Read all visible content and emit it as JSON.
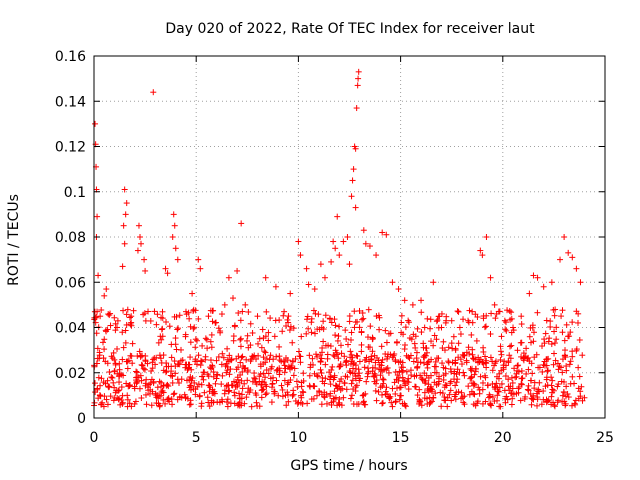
{
  "chart_data": {
    "type": "scatter",
    "title": "Day 020 of 2022, Rate Of TEC Index for receiver laut",
    "xlabel": "GPS time / hours",
    "ylabel": "ROTI / TECUs",
    "xlim": [
      0,
      25
    ],
    "ylim": [
      0,
      0.16
    ],
    "xticks": [
      0,
      5,
      10,
      15,
      20,
      25
    ],
    "xtick_labels": [
      "0",
      "5",
      "10",
      "15",
      "20",
      "25"
    ],
    "yticks": [
      0,
      0.02,
      0.04,
      0.06,
      0.08,
      0.1,
      0.12,
      0.14,
      0.16
    ],
    "ytick_labels": [
      "0",
      "0.02",
      "0.04",
      "0.06",
      "0.08",
      "0.1",
      "0.12",
      "0.14",
      "0.16"
    ],
    "grid": true,
    "marker": "+",
    "color": "#ff0000",
    "series": [
      {
        "name": "ROTI",
        "points": [
          [
            0.05,
            0.13
          ],
          [
            0.08,
            0.121
          ],
          [
            0.1,
            0.111
          ],
          [
            0.12,
            0.101
          ],
          [
            0.15,
            0.089
          ],
          [
            0.12,
            0.08
          ],
          [
            0.2,
            0.063
          ],
          [
            0.15,
            0.047
          ],
          [
            0.3,
            0.045
          ],
          [
            0.5,
            0.054
          ],
          [
            0.6,
            0.057
          ],
          [
            1.5,
            0.101
          ],
          [
            1.6,
            0.095
          ],
          [
            1.55,
            0.09
          ],
          [
            1.45,
            0.085
          ],
          [
            1.5,
            0.077
          ],
          [
            1.4,
            0.067
          ],
          [
            2.2,
            0.085
          ],
          [
            2.25,
            0.08
          ],
          [
            2.3,
            0.077
          ],
          [
            2.45,
            0.07
          ],
          [
            2.5,
            0.065
          ],
          [
            2.15,
            0.074
          ],
          [
            2.9,
            0.144
          ],
          [
            3.5,
            0.066
          ],
          [
            3.6,
            0.064
          ],
          [
            3.9,
            0.09
          ],
          [
            3.95,
            0.085
          ],
          [
            3.85,
            0.08
          ],
          [
            4.0,
            0.075
          ],
          [
            4.1,
            0.07
          ],
          [
            4.5,
            0.047
          ],
          [
            4.8,
            0.055
          ],
          [
            5.1,
            0.07
          ],
          [
            5.2,
            0.066
          ],
          [
            5.6,
            0.045
          ],
          [
            6.4,
            0.05
          ],
          [
            6.6,
            0.062
          ],
          [
            6.8,
            0.053
          ],
          [
            7.0,
            0.065
          ],
          [
            7.2,
            0.086
          ],
          [
            7.4,
            0.05
          ],
          [
            8.0,
            0.045
          ],
          [
            8.4,
            0.062
          ],
          [
            8.9,
            0.058
          ],
          [
            9.3,
            0.047
          ],
          [
            9.6,
            0.055
          ],
          [
            10.0,
            0.078
          ],
          [
            10.1,
            0.072
          ],
          [
            10.4,
            0.066
          ],
          [
            10.5,
            0.059
          ],
          [
            10.8,
            0.057
          ],
          [
            11.1,
            0.068
          ],
          [
            11.3,
            0.062
          ],
          [
            11.6,
            0.069
          ],
          [
            11.8,
            0.075
          ],
          [
            11.9,
            0.089
          ],
          [
            11.7,
            0.078
          ],
          [
            12.0,
            0.072
          ],
          [
            12.2,
            0.078
          ],
          [
            12.4,
            0.08
          ],
          [
            12.5,
            0.068
          ],
          [
            12.6,
            0.098
          ],
          [
            12.65,
            0.105
          ],
          [
            12.7,
            0.11
          ],
          [
            12.75,
            0.12
          ],
          [
            12.8,
            0.119
          ],
          [
            12.85,
            0.137
          ],
          [
            12.9,
            0.147
          ],
          [
            12.92,
            0.15
          ],
          [
            12.95,
            0.153
          ],
          [
            12.8,
            0.093
          ],
          [
            13.2,
            0.083
          ],
          [
            13.3,
            0.077
          ],
          [
            13.5,
            0.076
          ],
          [
            13.8,
            0.072
          ],
          [
            14.1,
            0.082
          ],
          [
            14.3,
            0.081
          ],
          [
            14.6,
            0.06
          ],
          [
            14.9,
            0.057
          ],
          [
            15.2,
            0.052
          ],
          [
            15.6,
            0.05
          ],
          [
            16.0,
            0.052
          ],
          [
            16.6,
            0.06
          ],
          [
            17.0,
            0.04
          ],
          [
            17.5,
            0.043
          ],
          [
            17.9,
            0.04
          ],
          [
            18.3,
            0.043
          ],
          [
            18.5,
            0.047
          ],
          [
            18.9,
            0.074
          ],
          [
            19.0,
            0.072
          ],
          [
            19.2,
            0.08
          ],
          [
            19.4,
            0.062
          ],
          [
            19.6,
            0.05
          ],
          [
            20.1,
            0.043
          ],
          [
            20.5,
            0.04
          ],
          [
            20.9,
            0.045
          ],
          [
            21.3,
            0.055
          ],
          [
            21.5,
            0.063
          ],
          [
            21.7,
            0.062
          ],
          [
            22.0,
            0.058
          ],
          [
            22.4,
            0.06
          ],
          [
            22.8,
            0.07
          ],
          [
            23.0,
            0.08
          ],
          [
            23.2,
            0.073
          ],
          [
            23.4,
            0.071
          ],
          [
            23.6,
            0.066
          ],
          [
            23.8,
            0.06
          ]
        ],
        "baseline_band": [
          0.005,
          0.028
        ]
      }
    ]
  }
}
